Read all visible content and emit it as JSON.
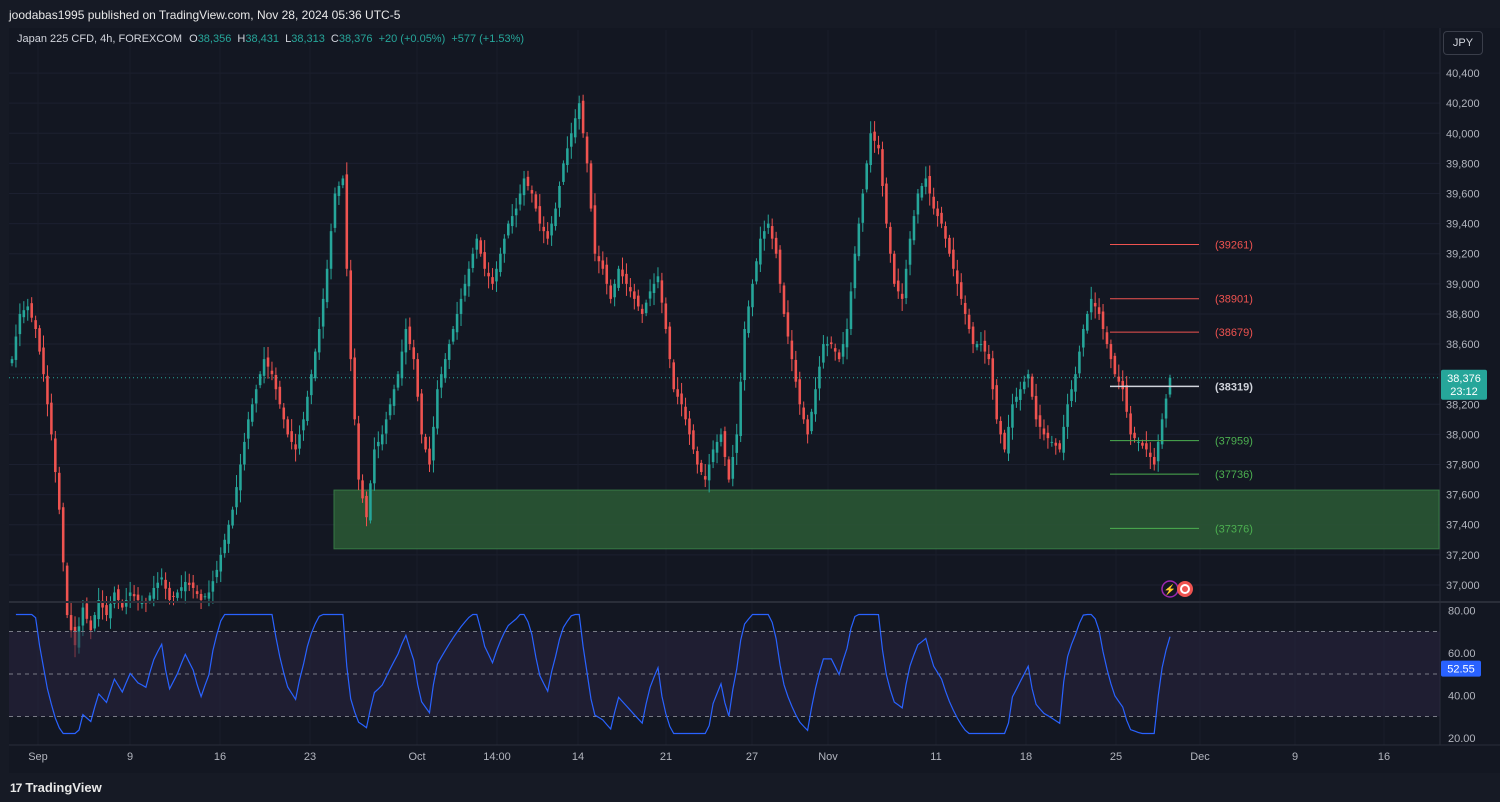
{
  "header": {
    "published": "joodabas1995 published on TradingView.com, Nov 28, 2024 05:36 UTC-5"
  },
  "legend": {
    "symbol": "Japan 225 CFD, 4h, FOREXCOM",
    "o_label": "O",
    "o_value": "38,356",
    "h_label": "H",
    "h_value": "38,431",
    "l_label": "L",
    "l_value": "38,313",
    "c_label": "C",
    "c_value": "38,376",
    "change": "+20 (+0.05%)",
    "change2": "+577 (+1.53%)"
  },
  "currency_button": "JPY",
  "price_badge": {
    "price": "38,376",
    "countdown": "23:12"
  },
  "rsi_badge": "52.55",
  "footer": {
    "brand": "TradingView",
    "logo_icon": "tradingview-logo-icon"
  },
  "colors": {
    "up": "#26a69a",
    "down": "#ef5350",
    "rsi_line": "#2962ff",
    "zone": "#2b5a35",
    "level_red": "#ef5350",
    "level_green": "#4caf50"
  },
  "chart_data": {
    "type": "candlestick",
    "price_ticks": [
      "40,400",
      "40,200",
      "40,000",
      "39,800",
      "39,600",
      "39,400",
      "39,200",
      "39,000",
      "38,800",
      "38,600",
      "38,400",
      "38,200",
      "38,000",
      "37,800",
      "37,600",
      "37,400",
      "37,200",
      "37,000"
    ],
    "price_tick_values": [
      40400,
      40200,
      40000,
      39800,
      39600,
      39400,
      39200,
      39000,
      38800,
      38600,
      38400,
      38200,
      38000,
      37800,
      37600,
      37400,
      37200,
      37000
    ],
    "ylim": [
      36900,
      40520
    ],
    "rsi_ticks": [
      "80.00",
      "60.00",
      "40.00",
      "20.00"
    ],
    "rsi_tick_values": [
      80,
      60,
      40,
      20
    ],
    "rsi_levels": [
      70,
      50,
      30
    ],
    "rsi_ylim": [
      18,
      82
    ],
    "x_labels": [
      "Sep",
      "9",
      "16",
      "23",
      "Oct",
      "14:00",
      "14",
      "21",
      "27",
      "Nov",
      "11",
      "18",
      "25",
      "Dec",
      "9",
      "16"
    ],
    "levels": [
      {
        "label": "(39261)",
        "value": 39261,
        "color": "red"
      },
      {
        "label": "(38901)",
        "value": 38901,
        "color": "red"
      },
      {
        "label": "(38679)",
        "value": 38679,
        "color": "red"
      },
      {
        "label": "(38319)",
        "value": 38319,
        "color": "white"
      },
      {
        "label": "(37959)",
        "value": 37959,
        "color": "green"
      },
      {
        "label": "(37736)",
        "value": 37736,
        "color": "green"
      },
      {
        "label": "(37376)",
        "value": 37376,
        "color": "green"
      }
    ],
    "support_zone": [
      37240,
      37630
    ],
    "last_price": 38376,
    "close_series": [
      38500,
      38800,
      38850,
      38700,
      38400,
      38000,
      37500,
      36800,
      36600,
      36850,
      36700,
      36900,
      36800,
      36950,
      36850,
      36950,
      36900,
      36880,
      36980,
      37050,
      36900,
      36950,
      37020,
      36980,
      36900,
      36950,
      37100,
      37300,
      37500,
      37800,
      38100,
      38300,
      38500,
      38400,
      38200,
      38000,
      37900,
      38100,
      38400,
      38700,
      39100,
      39600,
      39700,
      38500,
      37700,
      37450,
      37900,
      38000,
      38200,
      38400,
      38700,
      38500,
      38000,
      37800,
      38300,
      38500,
      38700,
      38900,
      39100,
      39300,
      39100,
      39000,
      39200,
      39400,
      39500,
      39700,
      39600,
      39400,
      39300,
      39500,
      39800,
      40000,
      40200,
      39800,
      39200,
      39100,
      38900,
      39100,
      39000,
      38900,
      38800,
      38950,
      39050,
      38700,
      38300,
      38200,
      38000,
      37800,
      37700,
      37900,
      38000,
      37700,
      38000,
      38700,
      39000,
      39300,
      39400,
      39200,
      38800,
      38500,
      38200,
      38000,
      38300,
      38600,
      38600,
      38500,
      38700,
      39200,
      39600,
      40000,
      39900,
      39400,
      39000,
      38900,
      39300,
      39600,
      39700,
      39500,
      39400,
      39200,
      39000,
      38800,
      38600,
      38600,
      38500,
      38100,
      37900,
      38200,
      38300,
      38400,
      38100,
      38000,
      37950,
      37900,
      38200,
      38400,
      38700,
      38900,
      38800,
      38600,
      38400,
      38300,
      38000,
      37950,
      37900,
      37800,
      38100,
      38376
    ]
  }
}
